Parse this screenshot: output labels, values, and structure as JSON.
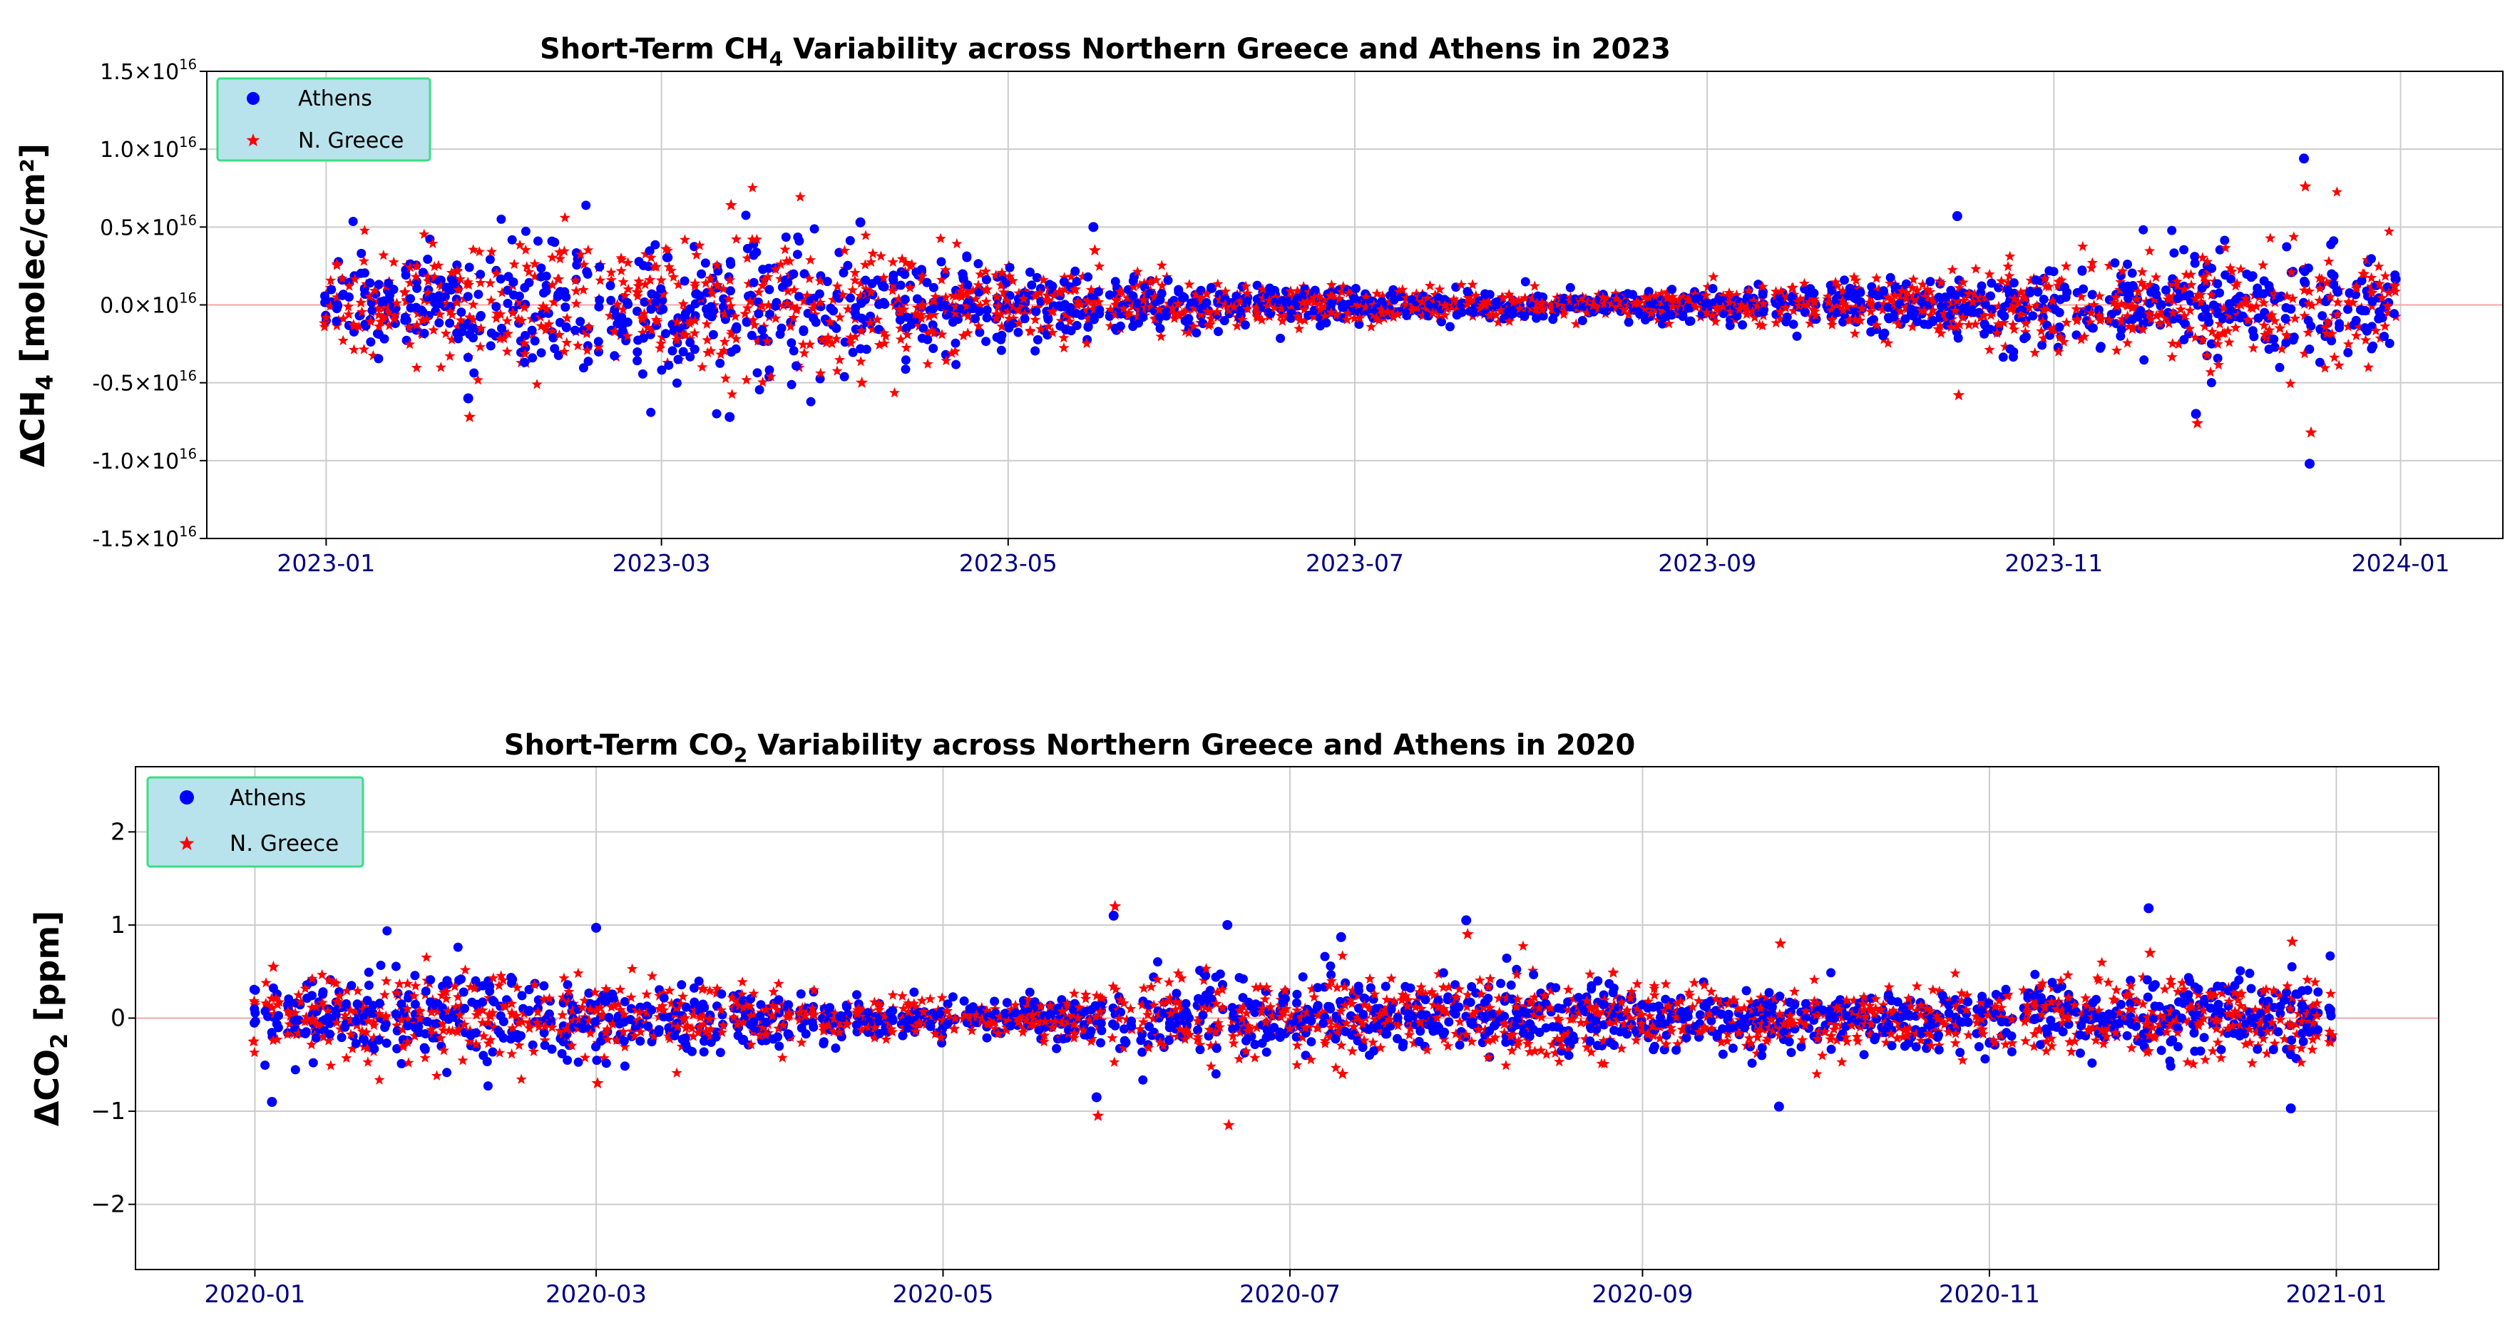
{
  "chart_data": [
    {
      "type": "scatter",
      "title_prefix": "Short-Term CH",
      "title_sub": "4",
      "title_suffix": " Variability across Northern Greece and Athens in 2023",
      "ylabel_prefix": "ΔCH",
      "ylabel_sub": "4",
      "ylabel_suffix": " [molec/cm²]",
      "ylim": [
        -1.5e+16,
        1.5e+16
      ],
      "xlim": [
        "2022-12-11",
        "2024-01-19"
      ],
      "x_start": "2023-01-01",
      "x_end": "2023-12-31",
      "y_ticks": [
        {
          "value": 1.5e+16,
          "mantissa": "1.5×10",
          "exp": "16"
        },
        {
          "value": 1e+16,
          "mantissa": "1.0×10",
          "exp": "16"
        },
        {
          "value": 5000000000000000.0,
          "mantissa": "0.5×10",
          "exp": "16"
        },
        {
          "value": 0,
          "mantissa": "0.0×10",
          "exp": "16"
        },
        {
          "value": -5000000000000000.0,
          "mantissa": "-0.5×10",
          "exp": "16"
        },
        {
          "value": -1e+16,
          "mantissa": "-1.0×10",
          "exp": "16"
        },
        {
          "value": -1.5e+16,
          "mantissa": "-1.5×10",
          "exp": "16"
        }
      ],
      "x_ticks": [
        {
          "date": "2023-01-01",
          "label": "2023-01"
        },
        {
          "date": "2023-03-01",
          "label": "2023-03"
        },
        {
          "date": "2023-05-01",
          "label": "2023-05"
        },
        {
          "date": "2023-07-01",
          "label": "2023-07"
        },
        {
          "date": "2023-09-01",
          "label": "2023-09"
        },
        {
          "date": "2023-11-01",
          "label": "2023-11"
        },
        {
          "date": "2024-01-01",
          "label": "2024-01"
        }
      ],
      "grid": true,
      "zero_line": true,
      "legend_position": "top-left",
      "legend": [
        "Athens",
        "N. Greece"
      ],
      "envelope": [
        {
          "date": "2023-01-01",
          "amp": 2500000000000000.0
        },
        {
          "date": "2023-02-01",
          "amp": 4000000000000000.0
        },
        {
          "date": "2023-03-15",
          "amp": 4500000000000000.0
        },
        {
          "date": "2023-04-15",
          "amp": 3200000000000000.0
        },
        {
          "date": "2023-05-15",
          "amp": 1800000000000000.0
        },
        {
          "date": "2023-07-01",
          "amp": 1000000000000000.0
        },
        {
          "date": "2023-08-15",
          "amp": 700000000000000.0
        },
        {
          "date": "2023-09-15",
          "amp": 1200000000000000.0
        },
        {
          "date": "2023-10-15",
          "amp": 2000000000000000.0
        },
        {
          "date": "2023-11-15",
          "amp": 3000000000000000.0
        },
        {
          "date": "2023-12-15",
          "amp": 4000000000000000.0
        },
        {
          "date": "2023-12-31",
          "amp": 3000000000000000.0
        }
      ],
      "extremes": [
        {
          "date": "2023-01-26",
          "athens": -6000000000000000.0,
          "greece": -7200000000000000.0
        },
        {
          "date": "2023-03-13",
          "athens": -7200000000000000.0,
          "greece": 6400000000000000.0
        },
        {
          "date": "2023-04-05",
          "athens": 5300000000000000.0,
          "greece": -5000000000000000.0
        },
        {
          "date": "2023-05-16",
          "athens": 5000000000000000.0,
          "greece": 3500000000000000.0
        },
        {
          "date": "2023-10-15",
          "athens": 5700000000000000.0,
          "greece": -5800000000000000.0
        },
        {
          "date": "2023-11-26",
          "athens": -7000000000000000.0,
          "greece": -7600000000000000.0
        },
        {
          "date": "2023-12-15",
          "athens": 9400000000000000.0,
          "greece": 7600000000000000.0
        },
        {
          "date": "2023-12-16",
          "athens": -1.02e+16,
          "greece": -8200000000000000.0
        }
      ],
      "series": [
        {
          "name": "Athens",
          "color": "#0000ff",
          "marker": "circle"
        },
        {
          "name": "N. Greece",
          "color": "#ff0000",
          "marker": "star"
        }
      ]
    },
    {
      "type": "scatter",
      "title_prefix": "Short-Term CO",
      "title_sub": "2",
      "title_suffix": " Variability across Northern Greece and Athens in 2020",
      "ylabel_prefix": "ΔCO",
      "ylabel_sub": "2",
      "ylabel_suffix": " [ppm]",
      "ylim": [
        -2.7,
        2.7
      ],
      "xlim": [
        "2019-12-11",
        "2021-01-19"
      ],
      "x_start": "2020-01-01",
      "x_end": "2020-12-31",
      "y_ticks": [
        {
          "value": 2,
          "label": "2"
        },
        {
          "value": 1,
          "label": "1"
        },
        {
          "value": 0,
          "label": "0"
        },
        {
          "value": -1,
          "label": "−1"
        },
        {
          "value": -2,
          "label": "−2"
        }
      ],
      "x_ticks": [
        {
          "date": "2020-01-01",
          "label": "2020-01"
        },
        {
          "date": "2020-03-01",
          "label": "2020-03"
        },
        {
          "date": "2020-05-01",
          "label": "2020-05"
        },
        {
          "date": "2020-07-01",
          "label": "2020-07"
        },
        {
          "date": "2020-09-01",
          "label": "2020-09"
        },
        {
          "date": "2020-11-01",
          "label": "2020-11"
        },
        {
          "date": "2021-01-01",
          "label": "2021-01"
        }
      ],
      "grid": true,
      "zero_line": true,
      "legend_position": "top-left",
      "legend": [
        "Athens",
        "N. Greece"
      ],
      "envelope": [
        {
          "date": "2020-01-01",
          "amp": 0.35
        },
        {
          "date": "2020-02-15",
          "amp": 0.45
        },
        {
          "date": "2020-03-15",
          "amp": 0.35
        },
        {
          "date": "2020-04-15",
          "amp": 0.2
        },
        {
          "date": "2020-05-15",
          "amp": 0.15
        },
        {
          "date": "2020-06-01",
          "amp": 0.4
        },
        {
          "date": "2020-06-15",
          "amp": 0.45
        },
        {
          "date": "2020-07-15",
          "amp": 0.35
        },
        {
          "date": "2020-08-15",
          "amp": 0.4
        },
        {
          "date": "2020-09-15",
          "amp": 0.3
        },
        {
          "date": "2020-10-15",
          "amp": 0.3
        },
        {
          "date": "2020-11-15",
          "amp": 0.35
        },
        {
          "date": "2020-12-31",
          "amp": 0.4
        }
      ],
      "extremes": [
        {
          "date": "2020-01-04",
          "athens": -0.9,
          "greece": 0.55
        },
        {
          "date": "2020-03-01",
          "athens": 0.97,
          "greece": -0.7
        },
        {
          "date": "2020-05-31",
          "athens": 1.1,
          "greece": 1.2
        },
        {
          "date": "2020-05-28",
          "athens": -0.85,
          "greece": -1.05
        },
        {
          "date": "2020-06-20",
          "athens": 1.0,
          "greece": -1.15
        },
        {
          "date": "2020-07-10",
          "athens": 0.87,
          "greece": -0.6
        },
        {
          "date": "2020-08-01",
          "athens": 1.05,
          "greece": 0.9
        },
        {
          "date": "2020-09-25",
          "athens": -0.95,
          "greece": 0.8
        },
        {
          "date": "2020-11-29",
          "athens": 1.18,
          "greece": 0.7
        },
        {
          "date": "2020-12-24",
          "athens": -0.97,
          "greece": 0.82
        }
      ],
      "series": [
        {
          "name": "Athens",
          "color": "#0000ff",
          "marker": "circle"
        },
        {
          "name": "N. Greece",
          "color": "#ff0000",
          "marker": "star"
        }
      ]
    }
  ],
  "colors": {
    "legend_bg": "#b9e3ec",
    "legend_border": "#3ddc84",
    "zero_line": "#f4a6a6",
    "grid": "#cccccc",
    "tick_label_x": "#000080"
  }
}
